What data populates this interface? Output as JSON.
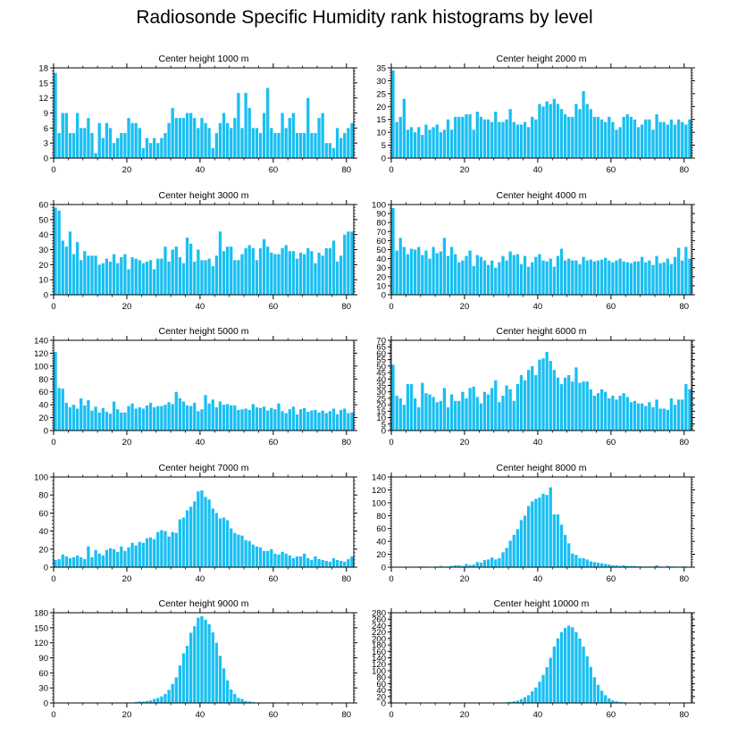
{
  "figure": {
    "title": "Radiosonde Specific Humidity rank histograms by level",
    "bar_color": "#19bff2",
    "axis_color": "#000000"
  },
  "chart_data": [
    {
      "type": "bar",
      "title": "Center height 1000 m",
      "xlim": [
        0,
        82
      ],
      "ylim": [
        0,
        18
      ],
      "xticks": [
        0,
        20,
        40,
        60,
        80
      ],
      "yticks": [
        0,
        3,
        6,
        9,
        12,
        15,
        18
      ],
      "x_start": 0,
      "values": [
        17,
        5,
        9,
        9,
        5,
        5,
        9,
        6,
        6,
        8,
        5,
        1,
        7,
        4,
        7,
        6,
        3,
        4,
        5,
        5,
        8,
        7,
        7,
        6,
        2,
        4,
        3,
        4,
        3,
        4,
        5,
        7,
        10,
        8,
        8,
        8,
        9,
        9,
        8,
        6,
        8,
        7,
        6,
        2,
        5,
        7,
        9,
        7,
        6,
        8,
        13,
        6,
        13,
        10,
        6,
        6,
        5,
        9,
        14,
        6,
        5,
        5,
        9,
        6,
        8,
        9,
        5,
        5,
        5,
        12,
        5,
        5,
        8,
        9,
        3,
        3,
        2,
        6,
        4,
        5,
        6,
        7
      ]
    },
    {
      "type": "bar",
      "title": "Center height 2000 m",
      "xlim": [
        0,
        82
      ],
      "ylim": [
        0,
        35
      ],
      "xticks": [
        0,
        20,
        40,
        60,
        80
      ],
      "yticks": [
        0,
        5,
        10,
        15,
        20,
        25,
        30,
        35
      ],
      "x_start": 0,
      "values": [
        34,
        14,
        16,
        23,
        11,
        12,
        10,
        12,
        9,
        13,
        11,
        12,
        13,
        10,
        11,
        15,
        11,
        16,
        16,
        16,
        17,
        17,
        11,
        18,
        16,
        15,
        15,
        14,
        18,
        14,
        14,
        15,
        19,
        14,
        13,
        13,
        14,
        12,
        16,
        15,
        21,
        20,
        22,
        21,
        23,
        21,
        19,
        17,
        16,
        16,
        21,
        19,
        26,
        21,
        19,
        16,
        16,
        15,
        14,
        16,
        14,
        11,
        12,
        16,
        17,
        16,
        15,
        12,
        13,
        15,
        15,
        11,
        17,
        14,
        14,
        13,
        15,
        13,
        15,
        14,
        13,
        15
      ]
    },
    {
      "type": "bar",
      "title": "Center height 3000 m",
      "xlim": [
        0,
        82
      ],
      "ylim": [
        0,
        60
      ],
      "xticks": [
        0,
        20,
        40,
        60,
        80
      ],
      "yticks": [
        0,
        10,
        20,
        30,
        40,
        50,
        60
      ],
      "x_start": 0,
      "values": [
        58,
        56,
        36,
        32,
        42,
        27,
        35,
        23,
        29,
        26,
        26,
        26,
        20,
        21,
        24,
        22,
        27,
        21,
        25,
        27,
        17,
        25,
        24,
        23,
        21,
        22,
        23,
        17,
        24,
        24,
        32,
        22,
        30,
        32,
        25,
        21,
        38,
        34,
        22,
        30,
        23,
        23,
        24,
        19,
        26,
        42,
        29,
        32,
        32,
        23,
        23,
        27,
        31,
        33,
        31,
        23,
        31,
        37,
        32,
        28,
        27,
        27,
        31,
        33,
        29,
        29,
        24,
        28,
        27,
        31,
        29,
        21,
        28,
        26,
        31,
        31,
        36,
        22,
        26,
        40,
        42,
        42
      ]
    },
    {
      "type": "bar",
      "title": "Center height 4000 m",
      "xlim": [
        0,
        82
      ],
      "ylim": [
        0,
        100
      ],
      "xticks": [
        0,
        20,
        40,
        60,
        80
      ],
      "yticks": [
        0,
        10,
        20,
        30,
        40,
        50,
        60,
        70,
        80,
        90,
        100
      ],
      "x_start": 0,
      "values": [
        96,
        49,
        63,
        53,
        45,
        51,
        50,
        53,
        44,
        49,
        40,
        53,
        46,
        48,
        63,
        43,
        53,
        45,
        36,
        38,
        43,
        49,
        32,
        44,
        42,
        38,
        33,
        38,
        30,
        36,
        43,
        38,
        48,
        44,
        45,
        34,
        43,
        31,
        36,
        42,
        45,
        38,
        37,
        40,
        31,
        43,
        51,
        38,
        40,
        38,
        38,
        34,
        42,
        38,
        39,
        37,
        38,
        39,
        41,
        38,
        36,
        38,
        40,
        37,
        36,
        35,
        37,
        37,
        42,
        36,
        38,
        33,
        43,
        35,
        36,
        40,
        34,
        42,
        52,
        38,
        53,
        40
      ]
    },
    {
      "type": "bar",
      "title": "Center height 5000 m",
      "xlim": [
        0,
        82
      ],
      "ylim": [
        0,
        140
      ],
      "xticks": [
        0,
        20,
        40,
        60,
        80
      ],
      "yticks": [
        0,
        20,
        40,
        60,
        80,
        100,
        120,
        140
      ],
      "x_start": 0,
      "values": [
        122,
        66,
        65,
        43,
        36,
        40,
        34,
        50,
        39,
        47,
        31,
        37,
        28,
        35,
        29,
        26,
        45,
        33,
        28,
        28,
        38,
        42,
        34,
        36,
        34,
        39,
        43,
        36,
        38,
        38,
        40,
        44,
        41,
        60,
        50,
        45,
        39,
        38,
        43,
        30,
        33,
        55,
        42,
        48,
        36,
        45,
        40,
        41,
        39,
        39,
        32,
        33,
        34,
        32,
        41,
        36,
        35,
        37,
        31,
        35,
        33,
        42,
        30,
        27,
        33,
        37,
        25,
        33,
        35,
        29,
        31,
        32,
        28,
        31,
        27,
        30,
        34,
        25,
        32,
        34,
        27,
        28
      ]
    },
    {
      "type": "bar",
      "title": "Center height 6000 m",
      "xlim": [
        0,
        82
      ],
      "ylim": [
        0,
        70
      ],
      "xticks": [
        0,
        20,
        40,
        60,
        80
      ],
      "yticks": [
        0,
        5,
        10,
        15,
        20,
        25,
        30,
        35,
        40,
        45,
        50,
        55,
        60,
        65,
        70
      ],
      "x_start": 0,
      "values": [
        51,
        27,
        25,
        20,
        36,
        36,
        25,
        18,
        37,
        29,
        28,
        26,
        22,
        23,
        33,
        18,
        28,
        23,
        23,
        30,
        25,
        33,
        34,
        26,
        21,
        30,
        28,
        33,
        39,
        22,
        27,
        35,
        32,
        23,
        36,
        43,
        39,
        47,
        50,
        43,
        55,
        56,
        61,
        54,
        47,
        41,
        36,
        41,
        43,
        38,
        49,
        37,
        38,
        38,
        32,
        27,
        29,
        32,
        30,
        25,
        27,
        24,
        27,
        29,
        26,
        22,
        23,
        21,
        21,
        19,
        22,
        18,
        24,
        17,
        17,
        16,
        25,
        20,
        24,
        24,
        36,
        32
      ]
    },
    {
      "type": "bar",
      "title": "Center height 7000 m",
      "xlim": [
        0,
        82
      ],
      "ylim": [
        0,
        100
      ],
      "xticks": [
        0,
        20,
        40,
        60,
        80
      ],
      "yticks": [
        0,
        20,
        40,
        60,
        80,
        100
      ],
      "x_start": 0,
      "values": [
        8,
        9,
        14,
        12,
        10,
        11,
        13,
        11,
        9,
        23,
        11,
        19,
        15,
        13,
        19,
        21,
        20,
        17,
        23,
        18,
        22,
        27,
        24,
        28,
        27,
        32,
        33,
        31,
        39,
        41,
        40,
        34,
        39,
        38,
        53,
        55,
        63,
        67,
        73,
        84,
        85,
        78,
        75,
        65,
        60,
        54,
        55,
        52,
        43,
        38,
        36,
        35,
        30,
        29,
        25,
        23,
        22,
        18,
        18,
        20,
        15,
        14,
        17,
        15,
        13,
        10,
        12,
        12,
        15,
        10,
        8,
        12,
        9,
        8,
        7,
        6,
        10,
        8,
        7,
        6,
        9,
        12
      ]
    },
    {
      "type": "bar",
      "title": "Center height 8000 m",
      "xlim": [
        0,
        82
      ],
      "ylim": [
        0,
        140
      ],
      "xticks": [
        0,
        20,
        40,
        60,
        80
      ],
      "yticks": [
        0,
        20,
        40,
        60,
        80,
        100,
        120,
        140
      ],
      "x_start": 0,
      "values": [
        0,
        0,
        0,
        0,
        0,
        0,
        0,
        1,
        1,
        1,
        0,
        0,
        1,
        2,
        1,
        1,
        2,
        3,
        3,
        2,
        5,
        3,
        4,
        8,
        7,
        11,
        12,
        15,
        12,
        14,
        23,
        30,
        41,
        50,
        59,
        73,
        80,
        95,
        102,
        106,
        108,
        114,
        112,
        124,
        82,
        82,
        66,
        50,
        37,
        21,
        19,
        14,
        14,
        12,
        9,
        8,
        7,
        6,
        5,
        4,
        3,
        3,
        2,
        3,
        2,
        2,
        2,
        1,
        1,
        1,
        1,
        1,
        3,
        1,
        0,
        2,
        1,
        1,
        0,
        1,
        1,
        0
      ]
    },
    {
      "type": "bar",
      "title": "Center height 9000 m",
      "xlim": [
        0,
        82
      ],
      "ylim": [
        0,
        180
      ],
      "xticks": [
        0,
        20,
        40,
        60,
        80
      ],
      "yticks": [
        0,
        30,
        60,
        90,
        120,
        150,
        180
      ],
      "x_start": 0,
      "values": [
        0,
        0,
        0,
        0,
        0,
        0,
        0,
        0,
        0,
        0,
        0,
        0,
        0,
        0,
        0,
        0,
        0,
        0,
        0,
        0,
        0,
        1,
        2,
        3,
        3,
        4,
        5,
        8,
        10,
        13,
        18,
        26,
        38,
        51,
        75,
        99,
        114,
        140,
        153,
        170,
        173,
        166,
        157,
        141,
        120,
        94,
        69,
        45,
        27,
        18,
        10,
        8,
        4,
        3,
        2,
        1,
        1,
        1,
        0,
        0,
        0,
        0,
        0,
        0,
        0,
        0,
        0,
        0,
        0,
        0,
        0,
        0,
        0,
        0,
        0,
        0,
        0,
        0,
        0,
        0,
        0,
        0
      ]
    },
    {
      "type": "bar",
      "title": "Center height 10000 m",
      "xlim": [
        0,
        82
      ],
      "ylim": [
        0,
        280
      ],
      "xticks": [
        0,
        20,
        40,
        60,
        80
      ],
      "yticks": [
        0,
        20,
        40,
        60,
        80,
        100,
        120,
        140,
        160,
        180,
        200,
        220,
        240,
        260,
        280
      ],
      "x_start": 0,
      "values": [
        0,
        0,
        0,
        0,
        0,
        0,
        0,
        0,
        0,
        0,
        0,
        0,
        0,
        0,
        0,
        0,
        0,
        0,
        0,
        0,
        0,
        0,
        0,
        0,
        0,
        0,
        0,
        0,
        0,
        0,
        1,
        2,
        3,
        5,
        7,
        12,
        18,
        24,
        36,
        48,
        66,
        87,
        111,
        140,
        175,
        200,
        220,
        233,
        240,
        235,
        220,
        200,
        175,
        145,
        112,
        80,
        56,
        38,
        24,
        14,
        8,
        5,
        3,
        2,
        1,
        1,
        0,
        0,
        0,
        0,
        0,
        0,
        0,
        0,
        0,
        0,
        0,
        0,
        0,
        0,
        0,
        0
      ]
    }
  ]
}
